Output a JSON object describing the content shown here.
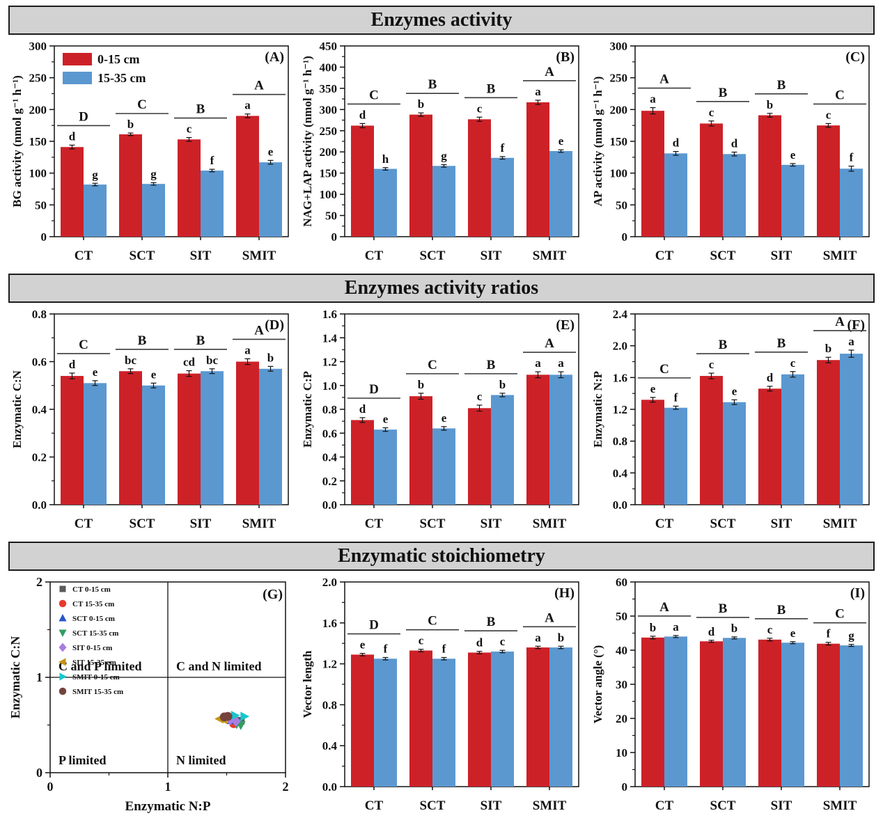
{
  "sections": [
    {
      "title": "Enzymes activity"
    },
    {
      "title": "Enzymes activity ratios"
    },
    {
      "title": "Enzymatic stoichiometry"
    }
  ],
  "colors": {
    "bar_red": "#cd2128",
    "bar_blue": "#5b98d0",
    "header_bg": "#d2d2d2",
    "axis": "#111111",
    "group_line": "#3a3a3a"
  },
  "depth_legend": {
    "items": [
      {
        "label": "0-15 cm",
        "color_key": "bar_red"
      },
      {
        "label": "15-35 cm",
        "color_key": "bar_blue"
      }
    ]
  },
  "chart_data": [
    {
      "type": "bar",
      "panel": "A",
      "ylabel": "BG activity (nmol g⁻¹ h⁻¹)",
      "ylim": [
        0,
        300
      ],
      "ytick": 50,
      "decimals": 0,
      "legend": true,
      "categories": [
        "CT",
        "SCT",
        "SIT",
        "SMIT"
      ],
      "group_letters": [
        "D",
        "C",
        "B",
        "A"
      ],
      "series": [
        {
          "name": "0-15 cm",
          "values": [
            141,
            161,
            153,
            190
          ],
          "errors": [
            3,
            2,
            3,
            3
          ],
          "letters": [
            "d",
            "b",
            "c",
            "a"
          ]
        },
        {
          "name": "15-35 cm",
          "values": [
            82,
            83,
            104,
            117
          ],
          "errors": [
            2,
            2,
            2,
            3
          ],
          "letters": [
            "g",
            "g",
            "f",
            "e"
          ]
        }
      ]
    },
    {
      "type": "bar",
      "panel": "B",
      "ylabel": "NAG+LAP activity (nmol g⁻¹ h⁻¹)",
      "ylim": [
        0,
        450
      ],
      "ytick": 50,
      "decimals": 0,
      "legend": false,
      "categories": [
        "CT",
        "SCT",
        "SIT",
        "SMIT"
      ],
      "group_letters": [
        "C",
        "B",
        "B",
        "A"
      ],
      "series": [
        {
          "name": "0-15 cm",
          "values": [
            262,
            288,
            277,
            317
          ],
          "errors": [
            5,
            4,
            5,
            5
          ],
          "letters": [
            "d",
            "b",
            "c",
            "a"
          ]
        },
        {
          "name": "15-35 cm",
          "values": [
            160,
            167,
            186,
            202
          ],
          "errors": [
            3,
            3,
            3,
            3
          ],
          "letters": [
            "h",
            "g",
            "f",
            "e"
          ]
        }
      ]
    },
    {
      "type": "bar",
      "panel": "C",
      "ylabel": "AP activity (nmol g⁻¹ h⁻¹)",
      "ylim": [
        0,
        300
      ],
      "ytick": 50,
      "decimals": 0,
      "legend": false,
      "categories": [
        "CT",
        "SCT",
        "SIT",
        "SMIT"
      ],
      "group_letters": [
        "A",
        "B",
        "B",
        "C"
      ],
      "series": [
        {
          "name": "0-15 cm",
          "values": [
            198,
            178,
            191,
            175
          ],
          "errors": [
            5,
            4,
            3,
            3
          ],
          "letters": [
            "a",
            "c",
            "b",
            "c"
          ]
        },
        {
          "name": "15-35 cm",
          "values": [
            131,
            130,
            113,
            107
          ],
          "errors": [
            3,
            3,
            2,
            4
          ],
          "letters": [
            "d",
            "d",
            "e",
            "f"
          ]
        }
      ]
    },
    {
      "type": "bar",
      "panel": "D",
      "ylabel": "Enzymatic C:N",
      "ylim": [
        0,
        0.8
      ],
      "ytick": 0.2,
      "decimals": 1,
      "legend": false,
      "categories": [
        "CT",
        "SCT",
        "SIT",
        "SMIT"
      ],
      "group_letters": [
        "C",
        "B",
        "B",
        "A"
      ],
      "series": [
        {
          "name": "0-15 cm",
          "values": [
            0.54,
            0.56,
            0.55,
            0.6
          ],
          "errors": [
            0.012,
            0.01,
            0.012,
            0.012
          ],
          "letters": [
            "d",
            "bc",
            "cd",
            "a"
          ]
        },
        {
          "name": "15-35 cm",
          "values": [
            0.51,
            0.5,
            0.56,
            0.57
          ],
          "errors": [
            0.01,
            0.01,
            0.01,
            0.01
          ],
          "letters": [
            "e",
            "e",
            "bc",
            "b"
          ]
        }
      ]
    },
    {
      "type": "bar",
      "panel": "E",
      "ylabel": "Enzymatic C:P",
      "ylim": [
        0,
        1.6
      ],
      "ytick": 0.2,
      "decimals": 1,
      "legend": false,
      "categories": [
        "CT",
        "SCT",
        "SIT",
        "SMIT"
      ],
      "group_letters": [
        "D",
        "C",
        "B",
        "A"
      ],
      "series": [
        {
          "name": "0-15 cm",
          "values": [
            0.71,
            0.91,
            0.81,
            1.09
          ],
          "errors": [
            0.02,
            0.025,
            0.025,
            0.025
          ],
          "letters": [
            "d",
            "b",
            "c",
            "a"
          ]
        },
        {
          "name": "15-35 cm",
          "values": [
            0.63,
            0.64,
            0.92,
            1.09
          ],
          "errors": [
            0.015,
            0.015,
            0.015,
            0.025
          ],
          "letters": [
            "e",
            "e",
            "b",
            "a"
          ]
        }
      ]
    },
    {
      "type": "bar",
      "panel": "F",
      "ylabel": "Enzymatic N:P",
      "ylim": [
        0,
        2.4
      ],
      "ytick": 0.4,
      "decimals": 1,
      "legend": false,
      "categories": [
        "CT",
        "SCT",
        "SIT",
        "SMIT"
      ],
      "group_letters": [
        "C",
        "B",
        "B",
        "A"
      ],
      "series": [
        {
          "name": "0-15 cm",
          "values": [
            1.32,
            1.62,
            1.46,
            1.82
          ],
          "errors": [
            0.03,
            0.035,
            0.03,
            0.035
          ],
          "letters": [
            "e",
            "c",
            "d",
            "b"
          ]
        },
        {
          "name": "15-35 cm",
          "values": [
            1.22,
            1.29,
            1.64,
            1.9
          ],
          "errors": [
            0.02,
            0.03,
            0.035,
            0.045
          ],
          "letters": [
            "f",
            "e",
            "c",
            "a"
          ]
        }
      ]
    },
    {
      "type": "scatter",
      "panel": "G",
      "xlabel": "Enzymatic N:P",
      "ylabel": "Enzymatic C:N",
      "xlim": [
        0,
        2
      ],
      "ylim": [
        0,
        2
      ],
      "xtick": 1,
      "ytick": 1,
      "quadrant_lines": {
        "x": 1,
        "y": 1
      },
      "quadrant_labels": [
        {
          "text": "C and P limited",
          "pos": "top-left"
        },
        {
          "text": "C and N limited",
          "pos": "top-right"
        },
        {
          "text": "P limited",
          "pos": "bottom-left"
        },
        {
          "text": "N limited",
          "pos": "bottom-right"
        }
      ],
      "series": [
        {
          "name": "CT 0-15 cm",
          "marker": "square",
          "color": "#5a5a5a",
          "points": [
            [
              1.62,
              0.545
            ]
          ]
        },
        {
          "name": "CT 15-35 cm",
          "marker": "circle",
          "color": "#e8392f",
          "points": [
            [
              1.56,
              0.515
            ]
          ]
        },
        {
          "name": "SCT 0-15 cm",
          "marker": "triangle-up",
          "color": "#2855c8",
          "points": [
            [
              1.54,
              0.55
            ]
          ]
        },
        {
          "name": "SCT 15-35 cm",
          "marker": "triangle-down",
          "color": "#2f9e63",
          "points": [
            [
              1.585,
              0.51
            ],
            [
              1.62,
              0.5
            ]
          ]
        },
        {
          "name": "SIT 0-15 cm",
          "marker": "diamond",
          "color": "#a97de0",
          "points": [
            [
              1.53,
              0.555
            ],
            [
              1.58,
              0.54
            ]
          ]
        },
        {
          "name": "SIT 15-35 cm",
          "marker": "triangle-left",
          "color": "#c79512",
          "points": [
            [
              1.44,
              0.565
            ],
            [
              1.47,
              0.56
            ]
          ]
        },
        {
          "name": "SMIT 0-15 cm",
          "marker": "triangle-right",
          "color": "#17c7ce",
          "points": [
            [
              1.57,
              0.6
            ],
            [
              1.65,
              0.59
            ]
          ]
        },
        {
          "name": "SMIT 15-35 cm",
          "marker": "circle",
          "color": "#74433e",
          "points": [
            [
              1.48,
              0.585
            ],
            [
              1.51,
              0.59
            ]
          ]
        }
      ]
    },
    {
      "type": "bar",
      "panel": "H",
      "ylabel": "Vector length",
      "ylim": [
        0,
        2.0
      ],
      "ytick": 0.4,
      "decimals": 1,
      "legend": false,
      "categories": [
        "CT",
        "SCT",
        "SIT",
        "SMIT"
      ],
      "group_letters": [
        "D",
        "C",
        "B",
        "A"
      ],
      "series": [
        {
          "name": "0-15 cm",
          "values": [
            1.29,
            1.33,
            1.31,
            1.36
          ],
          "errors": [
            0.012,
            0.012,
            0.012,
            0.012
          ],
          "letters": [
            "e",
            "c",
            "d",
            "a"
          ]
        },
        {
          "name": "15-35 cm",
          "values": [
            1.25,
            1.25,
            1.32,
            1.36
          ],
          "errors": [
            0.012,
            0.012,
            0.012,
            0.012
          ],
          "letters": [
            "f",
            "f",
            "c",
            "b"
          ]
        }
      ]
    },
    {
      "type": "bar",
      "panel": "I",
      "ylabel": "Vector angle (°)",
      "ylim": [
        0,
        60
      ],
      "ytick": 10,
      "decimals": 0,
      "legend": false,
      "categories": [
        "CT",
        "SCT",
        "SIT",
        "SMIT"
      ],
      "group_letters": [
        "A",
        "B",
        "B",
        "C"
      ],
      "series": [
        {
          "name": "0-15 cm",
          "values": [
            43.7,
            42.6,
            43.1,
            41.9
          ],
          "errors": [
            0.4,
            0.3,
            0.4,
            0.4
          ],
          "letters": [
            "b",
            "d",
            "c",
            "f"
          ]
        },
        {
          "name": "15-35 cm",
          "values": [
            44.0,
            43.6,
            42.2,
            41.4
          ],
          "errors": [
            0.3,
            0.3,
            0.3,
            0.3
          ],
          "letters": [
            "a",
            "b",
            "e",
            "g"
          ]
        }
      ]
    }
  ]
}
